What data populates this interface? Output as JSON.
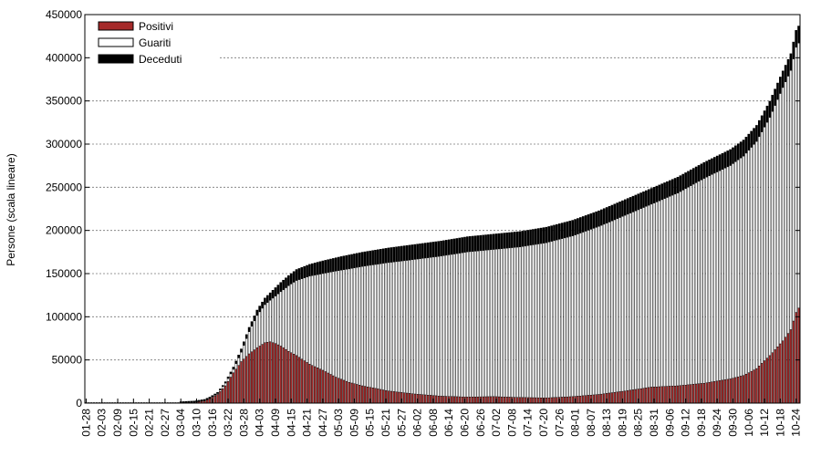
{
  "chart_data": {
    "type": "bar",
    "stacked": true,
    "ylabel": "Persone (scala lineare)",
    "ylim": [
      0,
      450000
    ],
    "y_ticks": [
      0,
      50000,
      100000,
      150000,
      200000,
      250000,
      300000,
      350000,
      400000,
      450000
    ],
    "y_tick_labels": [
      "0",
      "50000",
      "100000",
      "150000",
      "200000",
      "250000",
      "300000",
      "350000",
      "400000",
      "450000"
    ],
    "grid": "horizontal dotted",
    "legend_position": "top-left",
    "x_tick_labels": [
      "01-28",
      "02-03",
      "02-09",
      "02-15",
      "02-21",
      "02-27",
      "03-04",
      "03-10",
      "03-16",
      "03-22",
      "03-28",
      "04-03",
      "04-09",
      "04-15",
      "04-21",
      "04-27",
      "05-03",
      "05-09",
      "05-15",
      "05-21",
      "05-27",
      "06-02",
      "06-08",
      "06-14",
      "06-20",
      "06-26",
      "07-02",
      "07-08",
      "07-14",
      "07-20",
      "07-26",
      "08-01",
      "08-07",
      "08-13",
      "08-19",
      "08-25",
      "08-31",
      "09-06",
      "09-12",
      "09-18",
      "09-24",
      "09-30",
      "10-06",
      "10-12",
      "10-18",
      "10-24"
    ],
    "days_per_tick": 6,
    "series": [
      {
        "name": "Positivi",
        "color": "#a52a2a"
      },
      {
        "name": "Guariti",
        "color": "#ffffff"
      },
      {
        "name": "Deceduti",
        "color": "#000000"
      }
    ],
    "series_keyframes": {
      "total": [
        [
          0,
          0
        ],
        [
          35,
          0
        ],
        [
          41,
          1000
        ],
        [
          45,
          3000
        ],
        [
          47,
          6000
        ],
        [
          50,
          12000
        ],
        [
          53,
          25000
        ],
        [
          56,
          42000
        ],
        [
          59,
          63000
        ],
        [
          62,
          88000
        ],
        [
          65,
          108000
        ],
        [
          68,
          122000
        ],
        [
          71,
          131000
        ],
        [
          74,
          140000
        ],
        [
          77,
          148000
        ],
        [
          80,
          155000
        ],
        [
          85,
          161000
        ],
        [
          90,
          165000
        ],
        [
          97,
          170000
        ],
        [
          105,
          175000
        ],
        [
          115,
          180000
        ],
        [
          125,
          184000
        ],
        [
          135,
          188000
        ],
        [
          145,
          193000
        ],
        [
          155,
          196000
        ],
        [
          165,
          199000
        ],
        [
          175,
          204000
        ],
        [
          185,
          212000
        ],
        [
          195,
          223000
        ],
        [
          205,
          236000
        ],
        [
          215,
          249000
        ],
        [
          225,
          262000
        ],
        [
          235,
          279000
        ],
        [
          245,
          294000
        ],
        [
          250,
          305000
        ],
        [
          255,
          322000
        ],
        [
          260,
          350000
        ],
        [
          265,
          385000
        ],
        [
          268,
          405000
        ],
        [
          270,
          432000
        ],
        [
          271,
          437000
        ]
      ],
      "positivi": [
        [
          0,
          0
        ],
        [
          35,
          0
        ],
        [
          41,
          700
        ],
        [
          45,
          2500
        ],
        [
          47,
          5000
        ],
        [
          50,
          10000
        ],
        [
          53,
          20000
        ],
        [
          56,
          35000
        ],
        [
          59,
          48000
        ],
        [
          62,
          57000
        ],
        [
          65,
          64000
        ],
        [
          68,
          70000
        ],
        [
          70,
          71000
        ],
        [
          72,
          69000
        ],
        [
          74,
          66000
        ],
        [
          77,
          60000
        ],
        [
          80,
          55000
        ],
        [
          85,
          45000
        ],
        [
          90,
          38000
        ],
        [
          95,
          30000
        ],
        [
          100,
          24000
        ],
        [
          105,
          20000
        ],
        [
          115,
          14000
        ],
        [
          125,
          10500
        ],
        [
          135,
          8000
        ],
        [
          145,
          7000
        ],
        [
          155,
          7500
        ],
        [
          165,
          6500
        ],
        [
          175,
          6000
        ],
        [
          185,
          7500
        ],
        [
          195,
          10000
        ],
        [
          205,
          14000
        ],
        [
          215,
          18500
        ],
        [
          225,
          20000
        ],
        [
          235,
          23000
        ],
        [
          245,
          28000
        ],
        [
          250,
          32000
        ],
        [
          255,
          40000
        ],
        [
          260,
          55000
        ],
        [
          265,
          72000
        ],
        [
          268,
          85000
        ],
        [
          270,
          105000
        ],
        [
          271,
          110000
        ]
      ],
      "deceduti": [
        [
          0,
          0
        ],
        [
          40,
          0
        ],
        [
          45,
          150
        ],
        [
          50,
          1000
        ],
        [
          55,
          2500
        ],
        [
          60,
          4500
        ],
        [
          65,
          6500
        ],
        [
          70,
          9000
        ],
        [
          75,
          11500
        ],
        [
          80,
          13000
        ],
        [
          90,
          15000
        ],
        [
          100,
          16500
        ],
        [
          120,
          17500
        ],
        [
          150,
          18000
        ],
        [
          200,
          18500
        ],
        [
          240,
          18800
        ],
        [
          255,
          19000
        ],
        [
          265,
          19500
        ],
        [
          271,
          20000
        ]
      ]
    }
  }
}
